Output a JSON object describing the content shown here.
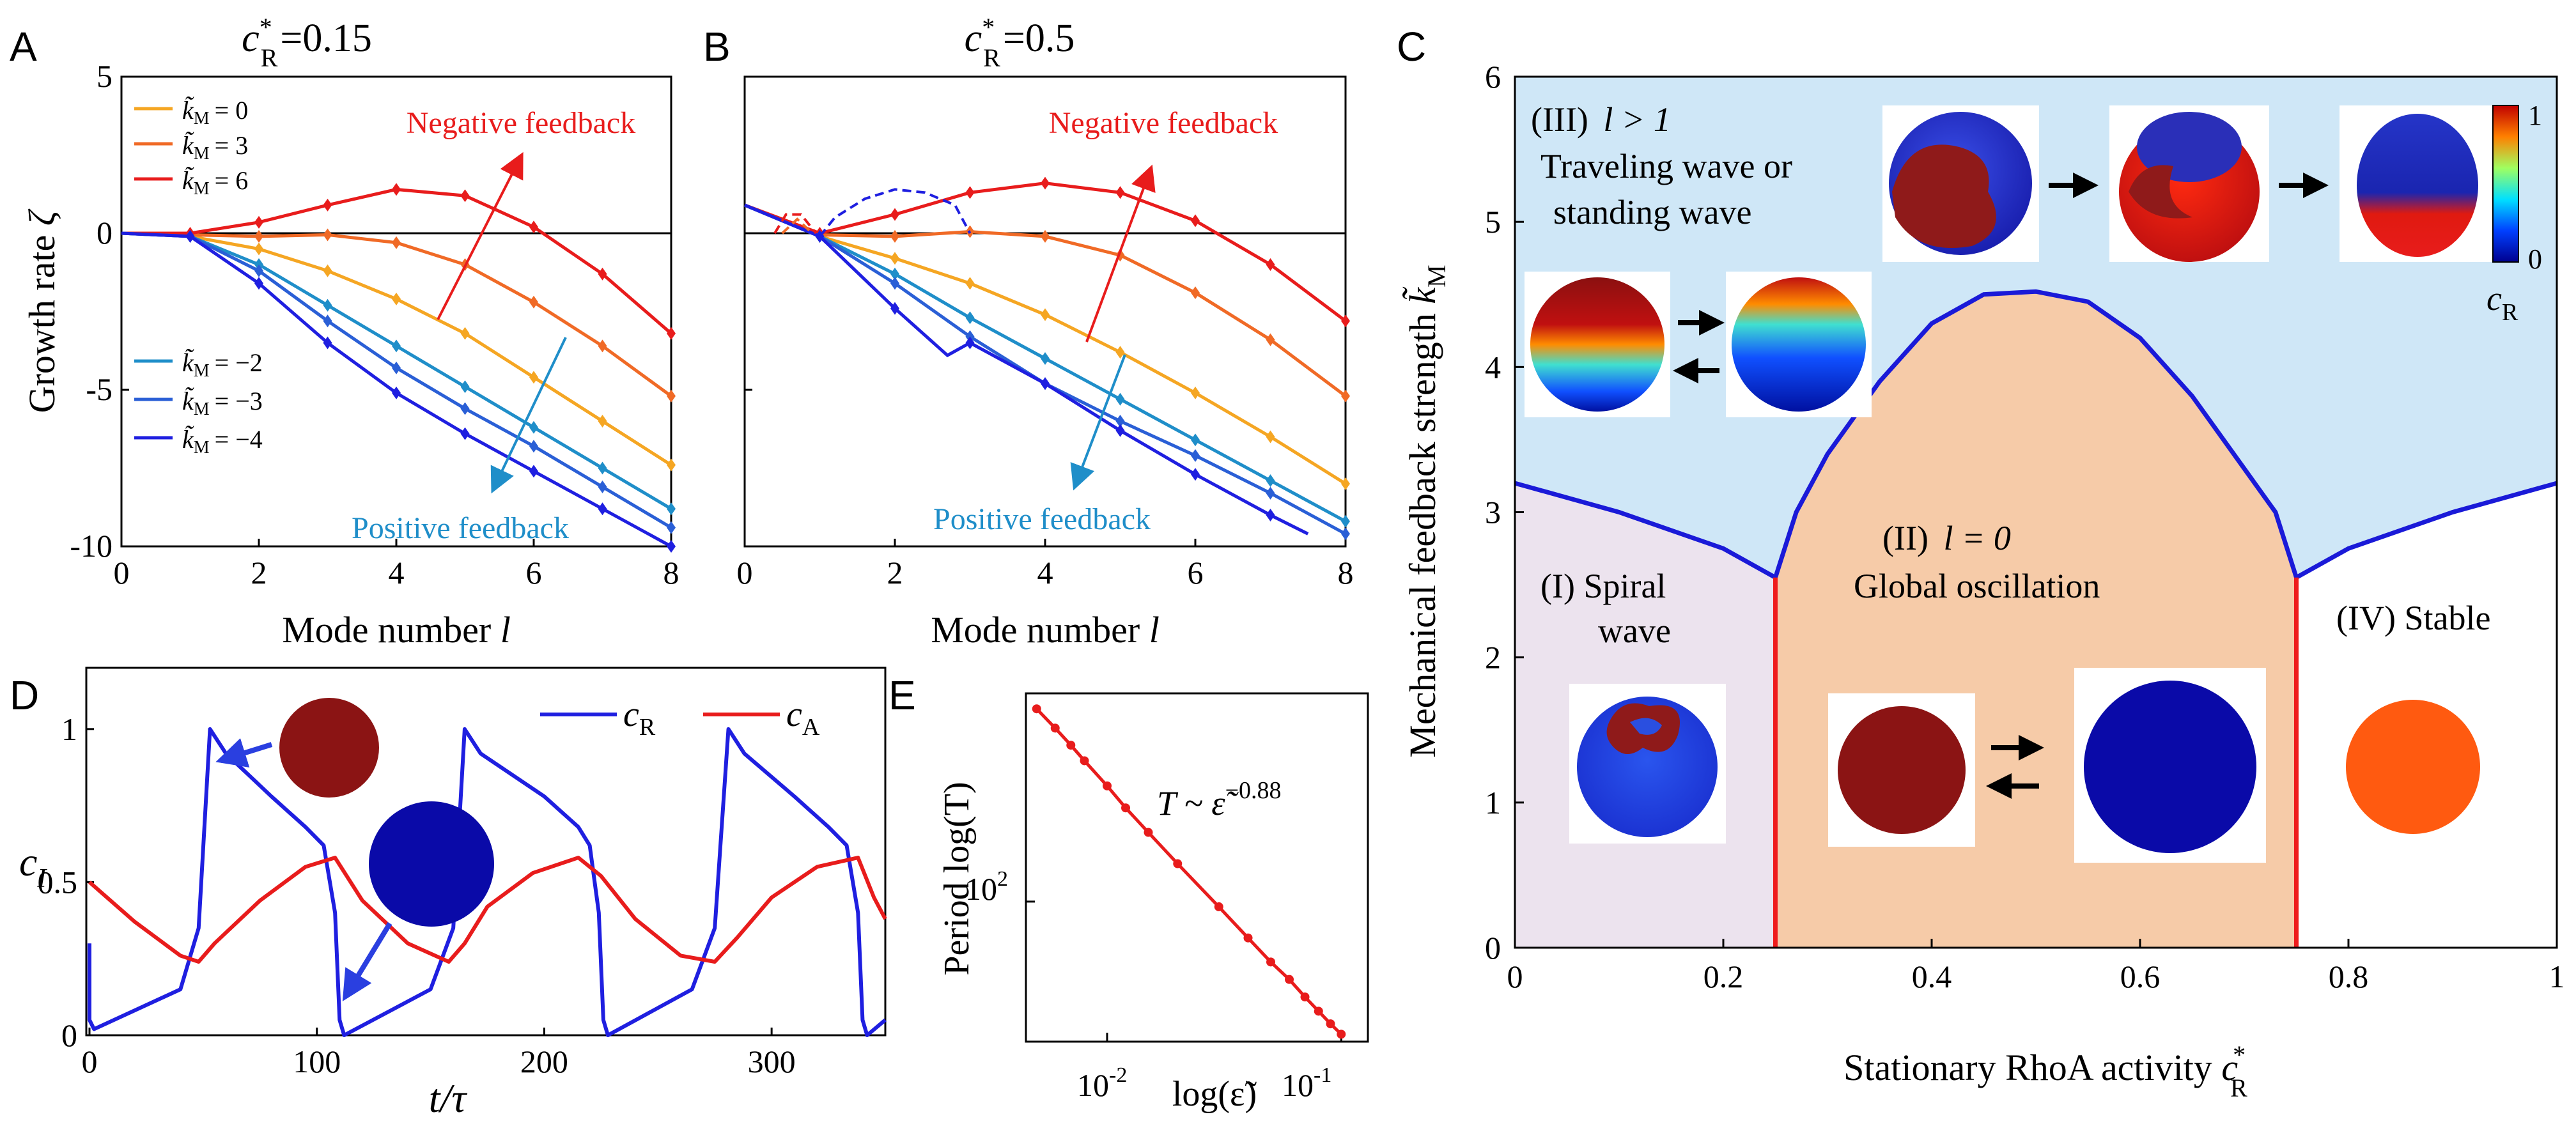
{
  "panels": {
    "A": {
      "letter": "A",
      "title_main": "c",
      "title_sup": "*",
      "title_sub": "R",
      "title_value": "=0.15",
      "xlabel": "Mode number",
      "xlabel_var": "l",
      "ylabel": "Growth rate",
      "ylabel_var": "ζ",
      "annotations": {
        "negative": "Negative feedback",
        "positive": "Positive feedback"
      },
      "legend_prefix": "k̃",
      "legend_sub": "M",
      "legend_entries": [
        "= 0",
        "= 3",
        "= 6",
        "= −2",
        "= −3",
        "= −4"
      ]
    },
    "B": {
      "letter": "B",
      "title_main": "c",
      "title_sup": "*",
      "title_sub": "R",
      "title_value": "=0.5",
      "xlabel": "Mode number",
      "xlabel_var": "l",
      "annotations": {
        "negative": "Negative feedback",
        "positive": "Positive feedback"
      }
    },
    "C": {
      "letter": "C",
      "xlabel": "Stationary RhoA activity",
      "xlabel_var": "c",
      "xlabel_sup": "*",
      "xlabel_sub": "R",
      "ylabel": "Mechanical feedback strength",
      "ylabel_var": "k̃",
      "ylabel_sub": "M",
      "regions": {
        "III_a": "(III)",
        "III_var": "l > 1",
        "III_b": "Traveling wave or",
        "III_c": "standing wave",
        "II_a": "(II)",
        "II_var": "l = 0",
        "II_b": "Global oscillation",
        "I_a": "(I) Spiral",
        "I_b": "wave",
        "IV": "(IV) Stable"
      },
      "colorbar": {
        "max": "1",
        "min": "0",
        "label": "c",
        "label_sub": "R"
      }
    },
    "D": {
      "letter": "D",
      "xlabel": "t/τ",
      "ylabel": "c",
      "ylabel_sub": "I",
      "legend": [
        {
          "name": "c",
          "sub": "R",
          "color": "#1f1fe0"
        },
        {
          "name": "c",
          "sub": "A",
          "color": "#e81c1c"
        }
      ]
    },
    "E": {
      "letter": "E",
      "ylabel": "Period log(T)",
      "xlabel": "log(ε̃)",
      "annotation": "T ~ ε̃",
      "annotation_exp": "−0.88",
      "ytick": "10",
      "ytick_exp": "2",
      "xticks": [
        {
          "base": "10",
          "exp": "-2"
        },
        {
          "base": "10",
          "exp": "-1"
        }
      ]
    }
  },
  "chart_data": [
    {
      "panel": "A",
      "type": "line",
      "x": [
        0,
        1,
        2,
        3,
        4,
        5,
        6,
        7,
        8
      ],
      "xlim": [
        0,
        8
      ],
      "ylim": [
        -10,
        5
      ],
      "xticks": [
        "0",
        "2",
        "4",
        "6",
        "8"
      ],
      "yticks": [
        "-10",
        "-5",
        "0",
        "5"
      ],
      "series": [
        {
          "name": "k̃M = 0",
          "color": "#f5a623",
          "values": [
            0,
            -0.1,
            -0.5,
            -1.2,
            -2.1,
            -3.2,
            -4.6,
            -6.0,
            -7.4
          ]
        },
        {
          "name": "k̃M = 3",
          "color": "#f06a26",
          "values": [
            0,
            -0.05,
            -0.1,
            -0.05,
            -0.3,
            -1.0,
            -2.2,
            -3.6,
            -5.2
          ]
        },
        {
          "name": "k̃M = 6",
          "color": "#e81c1c",
          "values": [
            0,
            0,
            0.35,
            0.9,
            1.4,
            1.2,
            0.2,
            -1.3,
            -3.2
          ]
        },
        {
          "name": "k̃M = −2",
          "color": "#1f8ec9",
          "values": [
            0,
            -0.1,
            -1.0,
            -2.3,
            -3.6,
            -4.9,
            -6.2,
            -7.5,
            -8.8
          ]
        },
        {
          "name": "k̃M = −3",
          "color": "#2a5fd6",
          "values": [
            0,
            -0.1,
            -1.2,
            -2.8,
            -4.3,
            -5.6,
            -6.8,
            -8.1,
            -9.4
          ]
        },
        {
          "name": "k̃M = −4",
          "color": "#1f1fe0",
          "values": [
            0,
            -0.1,
            -1.6,
            -3.5,
            -5.1,
            -6.4,
            -7.6,
            -8.8,
            -10.0
          ]
        }
      ]
    },
    {
      "panel": "B",
      "type": "line",
      "xlim": [
        0,
        8
      ],
      "ylim": [
        -10,
        5
      ],
      "xticks": [
        "0",
        "2",
        "4",
        "6",
        "8"
      ],
      "series": [
        {
          "color": "#f5a623",
          "x": [
            0,
            1,
            2,
            3,
            4,
            5,
            6,
            7,
            8
          ],
          "values": [
            0.9,
            -0.1,
            -0.8,
            -1.6,
            -2.6,
            -3.8,
            -5.1,
            -6.5,
            -8.0
          ]
        },
        {
          "color": "#f06a26",
          "x": [
            0,
            1,
            2,
            3,
            4,
            5,
            6,
            7,
            8
          ],
          "values": [
            0.9,
            -0.05,
            -0.1,
            0.05,
            -0.1,
            -0.7,
            -1.9,
            -3.4,
            -5.2
          ]
        },
        {
          "color": "#e81c1c",
          "x": [
            0,
            1,
            2,
            3,
            4,
            5,
            6,
            7,
            8
          ],
          "values": [
            0.9,
            0,
            0.6,
            1.3,
            1.6,
            1.3,
            0.4,
            -1.0,
            -2.8
          ]
        },
        {
          "color": "#1f8ec9",
          "x": [
            0,
            1,
            2,
            3,
            4,
            5,
            6,
            7,
            8
          ],
          "values": [
            0.9,
            -0.1,
            -1.3,
            -2.7,
            -4.0,
            -5.3,
            -6.6,
            -7.9,
            -9.2
          ]
        },
        {
          "color": "#2a5fd6",
          "x": [
            0,
            1,
            2,
            3,
            4,
            5,
            6,
            7,
            8
          ],
          "values": [
            0.9,
            -0.1,
            -1.6,
            -3.3,
            -4.8,
            -6.0,
            -7.1,
            -8.3,
            -9.6
          ]
        },
        {
          "color": "#1f1fe0",
          "x": [
            0,
            1,
            2,
            2.7,
            3,
            4,
            5,
            6,
            7,
            7.5
          ],
          "values": [
            0.9,
            -0.1,
            -2.4,
            -3.9,
            -3.5,
            -4.8,
            -6.3,
            -7.7,
            -9.0,
            -9.6
          ]
        }
      ],
      "dashed": [
        {
          "color": "#1f1fe0",
          "x": [
            1,
            1.2,
            1.6,
            2,
            2.4,
            2.8,
            3
          ],
          "values": [
            -0.1,
            0.5,
            1.1,
            1.4,
            1.3,
            0.9,
            0
          ]
        },
        {
          "color": "#e81c1c",
          "x": [
            0.4,
            0.55,
            0.75,
            0.95
          ],
          "values": [
            0,
            0.6,
            0.6,
            0
          ]
        },
        {
          "color": "#f06a26",
          "x": [
            0.5,
            0.7,
            0.9
          ],
          "values": [
            0,
            0.45,
            0
          ]
        }
      ]
    },
    {
      "panel": "C",
      "type": "area",
      "xlim": [
        0,
        1
      ],
      "ylim": [
        0,
        6
      ],
      "xticks": [
        "0",
        "0.2",
        "0.4",
        "0.6",
        "0.8",
        "1"
      ],
      "yticks": [
        "0",
        "1",
        "2",
        "3",
        "4",
        "5",
        "6"
      ],
      "boundary": {
        "x": [
          0,
          0.1,
          0.2,
          0.25,
          0.27,
          0.3,
          0.35,
          0.4,
          0.45,
          0.5,
          0.55,
          0.6,
          0.65,
          0.7,
          0.73,
          0.75,
          0.8,
          0.9,
          1
        ],
        "values": [
          3.2,
          3.0,
          2.75,
          2.55,
          3.0,
          3.4,
          3.9,
          4.3,
          4.5,
          4.52,
          4.45,
          4.2,
          3.8,
          3.3,
          3.0,
          2.55,
          2.75,
          3.0,
          3.2
        ]
      },
      "vertical_lines_x": [
        0.25,
        0.75
      ]
    },
    {
      "panel": "D",
      "type": "line",
      "xlim": [
        0,
        350
      ],
      "ylim": [
        0,
        1.2
      ],
      "xticks": [
        "0",
        "100",
        "200",
        "300"
      ],
      "yticks": [
        "0",
        "0.5",
        "1"
      ],
      "series": [
        {
          "name": "cR",
          "color": "#1f1fe0",
          "x": [
            0,
            0,
            2,
            40,
            48,
            53,
            60,
            80,
            95,
            103,
            108,
            110,
            112,
            150,
            160,
            165,
            172,
            200,
            215,
            220,
            224,
            226,
            228,
            265,
            275,
            281,
            288,
            310,
            325,
            333,
            338,
            340,
            342,
            350
          ],
          "values": [
            0.3,
            0.05,
            0.02,
            0.15,
            0.35,
            1.0,
            0.92,
            0.78,
            0.68,
            0.62,
            0.4,
            0.05,
            0.0,
            0.15,
            0.35,
            1.0,
            0.92,
            0.78,
            0.68,
            0.62,
            0.4,
            0.05,
            0.0,
            0.15,
            0.35,
            1.0,
            0.92,
            0.78,
            0.68,
            0.62,
            0.4,
            0.05,
            0.0,
            0.05
          ]
        },
        {
          "name": "cA",
          "color": "#e81c1c",
          "x": [
            0,
            20,
            40,
            48,
            55,
            75,
            95,
            108,
            120,
            140,
            158,
            165,
            175,
            195,
            215,
            225,
            240,
            260,
            275,
            285,
            300,
            320,
            338,
            345,
            350
          ],
          "values": [
            0.5,
            0.37,
            0.26,
            0.24,
            0.3,
            0.44,
            0.55,
            0.58,
            0.44,
            0.3,
            0.24,
            0.3,
            0.42,
            0.53,
            0.58,
            0.52,
            0.38,
            0.26,
            0.24,
            0.32,
            0.45,
            0.55,
            0.58,
            0.45,
            0.38
          ]
        }
      ]
    },
    {
      "panel": "E",
      "type": "line",
      "log_x": true,
      "log_y": true,
      "x": [
        0.005,
        0.006,
        0.007,
        0.008,
        0.01,
        0.012,
        0.015,
        0.02,
        0.03,
        0.04,
        0.05,
        0.06,
        0.07,
        0.08,
        0.09,
        0.1
      ],
      "values": [
        460,
        395,
        345,
        305,
        250,
        210,
        173,
        135,
        96,
        75,
        62,
        54,
        47,
        42,
        38,
        35
      ],
      "xlim": [
        0.0045,
        0.13
      ],
      "ylim": [
        33,
        520
      ],
      "color": "#e81c1c"
    }
  ]
}
